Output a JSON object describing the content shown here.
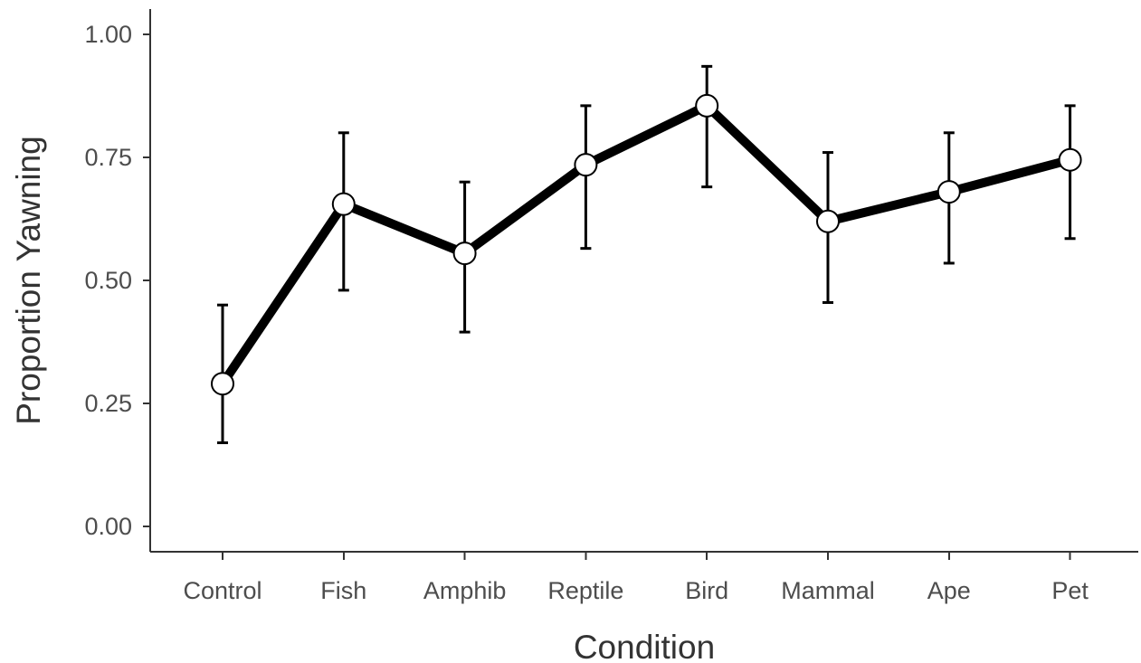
{
  "chart_data": {
    "type": "line",
    "title": "",
    "xlabel": "Condition",
    "ylabel": "Proportion Yawning",
    "categories": [
      "Control",
      "Fish",
      "Amphib",
      "Reptile",
      "Bird",
      "Mammal",
      "Ape",
      "Pet"
    ],
    "series": [
      {
        "values": [
          0.29,
          0.655,
          0.555,
          0.735,
          0.855,
          0.62,
          0.68,
          0.745
        ],
        "error_low": [
          0.17,
          0.48,
          0.395,
          0.565,
          0.69,
          0.455,
          0.535,
          0.585
        ],
        "error_high": [
          0.45,
          0.8,
          0.7,
          0.855,
          0.935,
          0.76,
          0.8,
          0.855
        ]
      }
    ],
    "ylim": [
      0,
      1
    ],
    "yticks": [
      0.0,
      0.25,
      0.5,
      0.75,
      1.0
    ],
    "ytick_labels": [
      "0.00",
      "0.25",
      "0.50",
      "0.75",
      "1.00"
    ],
    "grid": false,
    "legend": "none",
    "colors": {
      "line": "#000000",
      "marker_fill": "#ffffff",
      "axis": "#333333",
      "tick_text": "#4d4d4d"
    }
  }
}
